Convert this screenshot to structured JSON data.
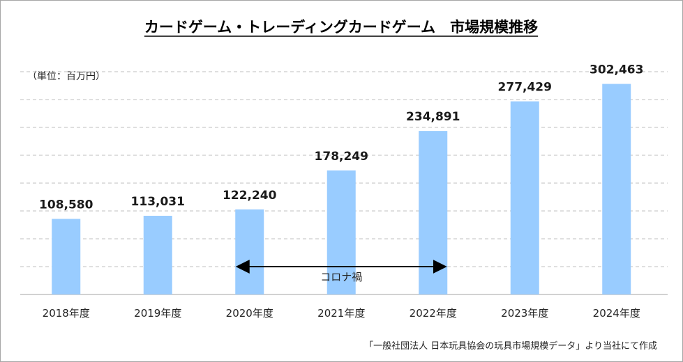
{
  "chart_data": {
    "type": "bar",
    "title": "カードゲーム・トレーディングカードゲーム　市場規模推移",
    "unit_label": "（単位：百万円）",
    "categories": [
      "2018年度",
      "2019年度",
      "2020年度",
      "2021年度",
      "2022年度",
      "2023年度",
      "2024年度"
    ],
    "values": [
      108580,
      113031,
      122240,
      178249,
      234891,
      277429,
      302463
    ],
    "value_labels": [
      "108,580",
      "113,031",
      "122,240",
      "178,249",
      "234,891",
      "277,429",
      "302,463"
    ],
    "ylim": [
      0,
      320000
    ],
    "grid": true,
    "bar_color": "#99ccff",
    "annotation": {
      "text": "コロナ禍",
      "from_category": "2020年度",
      "to_category": "2022年度"
    },
    "source": "「一般社団法人 日本玩具協会の玩具市場規模データ」より当社にて作成"
  }
}
